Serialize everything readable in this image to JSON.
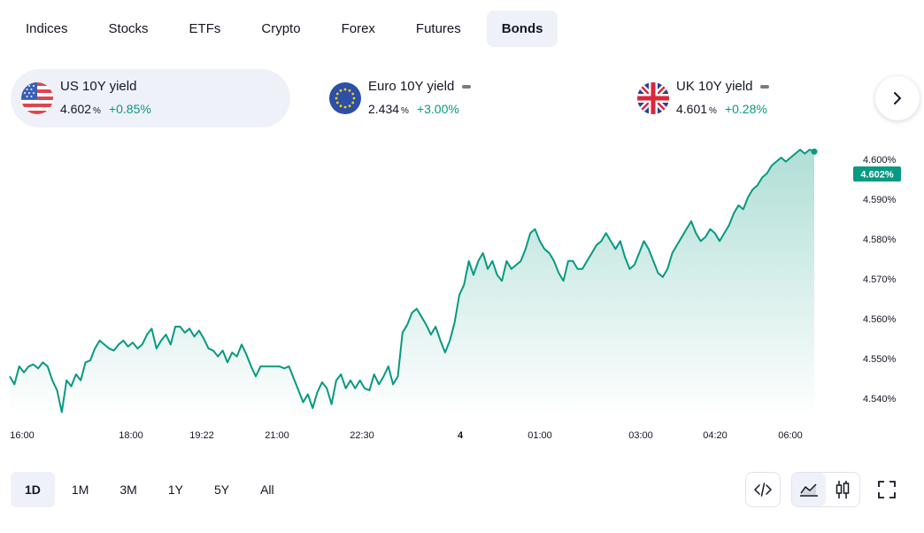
{
  "tabs": [
    {
      "label": "Indices"
    },
    {
      "label": "Stocks"
    },
    {
      "label": "ETFs"
    },
    {
      "label": "Crypto"
    },
    {
      "label": "Forex"
    },
    {
      "label": "Futures"
    },
    {
      "label": "Bonds",
      "active": true
    }
  ],
  "cards": [
    {
      "name": "US 10Y yield",
      "value": "4.602",
      "unit": "%",
      "change": "+0.85%",
      "flag": "us-flag-icon"
    },
    {
      "name": "Euro 10Y yield",
      "value": "2.434",
      "unit": "%",
      "change": "+3.00%",
      "flag": "eu-flag-icon"
    },
    {
      "name": "UK 10Y yield",
      "value": "4.601",
      "unit": "%",
      "change": "+0.28%",
      "flag": "uk-flag-icon"
    }
  ],
  "colors": {
    "accent": "#089981",
    "active_bg": "#eef1f8",
    "text": "#131722"
  },
  "chart_data": {
    "type": "area",
    "series": [
      {
        "values": [
          4.5455,
          4.5435,
          4.548,
          4.5465,
          4.548,
          4.5485,
          4.5475,
          4.549,
          4.548,
          4.5445,
          4.542,
          4.5365,
          4.5445,
          4.543,
          4.546,
          4.5445,
          4.549,
          4.5495,
          4.5525,
          4.5545,
          4.5535,
          4.5525,
          4.552,
          4.5535,
          4.5545,
          4.553,
          4.554,
          4.5525,
          4.5535,
          4.556,
          4.5575,
          4.5525,
          4.5545,
          4.556,
          4.5535,
          4.558,
          4.558,
          4.5565,
          4.5575,
          4.5555,
          4.557,
          4.555,
          4.5525,
          4.552,
          4.5505,
          4.552,
          4.549,
          4.5515,
          4.5505,
          4.5535,
          4.551,
          4.548,
          4.5455,
          4.548,
          4.548,
          4.548,
          4.548,
          4.548,
          4.5475,
          4.548,
          4.545,
          4.542,
          4.539,
          4.541,
          4.5375,
          4.5415,
          4.544,
          4.5425,
          4.5385,
          4.5445,
          4.546,
          4.5425,
          4.5445,
          4.5425,
          4.5445,
          4.5425,
          4.542,
          4.546,
          4.5435,
          4.5455,
          4.548,
          4.5435,
          4.5455,
          4.5565,
          4.5585,
          4.5615,
          4.5625,
          4.5605,
          4.5585,
          4.556,
          4.558,
          4.5545,
          4.5515,
          4.5545,
          4.559,
          4.566,
          4.5685,
          4.5745,
          4.571,
          4.5745,
          4.5765,
          4.5725,
          4.5745,
          4.571,
          4.5695,
          4.5745,
          4.5725,
          4.5735,
          4.5745,
          4.5775,
          4.5815,
          4.5825,
          4.5795,
          4.5775,
          4.5765,
          4.5745,
          4.5715,
          4.5695,
          4.5745,
          4.5745,
          4.5725,
          4.5725,
          4.5745,
          4.5765,
          4.5785,
          4.5795,
          4.5815,
          4.5795,
          4.5775,
          4.5795,
          4.5755,
          4.5725,
          4.5735,
          4.5765,
          4.5795,
          4.5775,
          4.5745,
          4.5715,
          4.5705,
          4.5725,
          4.5765,
          4.5785,
          4.5805,
          4.5825,
          4.5845,
          4.5815,
          4.5795,
          4.5805,
          4.5825,
          4.5815,
          4.5795,
          4.5815,
          4.5835,
          4.5865,
          4.5885,
          4.5875,
          4.5905,
          4.5925,
          4.5935,
          4.5955,
          4.5965,
          4.5985,
          4.5995,
          4.6005,
          4.5995,
          4.6005,
          4.6015,
          4.6025,
          4.6015,
          4.6025,
          4.602
        ]
      }
    ],
    "x_tick_labels": [
      "16:00",
      "18:00",
      "19:22",
      "21:00",
      "22:30",
      "4",
      "01:00",
      "03:00",
      "04:20",
      "06:00"
    ],
    "y_tick_labels": [
      "4.540%",
      "4.550%",
      "4.560%",
      "4.570%",
      "4.580%",
      "4.590%",
      "4.600%"
    ],
    "ylim": [
      4.5355,
      4.6045
    ],
    "last_value_label": "4.602%",
    "grid": false
  },
  "ranges": [
    {
      "label": "1D",
      "active": true
    },
    {
      "label": "1M"
    },
    {
      "label": "3M"
    },
    {
      "label": "1Y"
    },
    {
      "label": "5Y"
    },
    {
      "label": "All"
    }
  ]
}
